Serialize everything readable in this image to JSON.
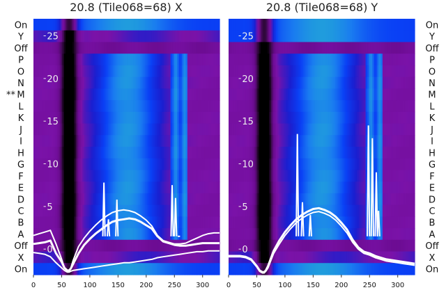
{
  "chart_data": [
    {
      "type": "heatmap",
      "title": "20.8 (Tile068=68) X",
      "xlabel": "",
      "ylabel": "",
      "x_ticks": [
        0,
        50,
        100,
        150,
        200,
        250,
        300
      ],
      "xlim": [
        0,
        330
      ],
      "row_labels_top_to_bottom": [
        "On",
        "Y",
        "Off",
        "P",
        "O",
        "N",
        "M",
        "L",
        "K",
        "J",
        "I",
        "H",
        "G",
        "F",
        "E",
        "D",
        "C",
        "B",
        "A",
        "Off",
        "X",
        "On"
      ],
      "row_labels_side": "left",
      "marked_row": "M",
      "marker_text": "** ",
      "overlay_y_ticks": [
        25,
        20,
        15,
        10,
        5,
        0
      ],
      "overlay_ylim": [
        -3,
        27
      ],
      "colormap": [
        "#000000",
        "#3b0a4a",
        "#6a0b8f",
        "#7a12a8",
        "#1a1fd0",
        "#0a40f5",
        "#1a7cf0",
        "#22a8d6",
        "#20b8a0"
      ],
      "rows": [
        {
          "label": "On",
          "profile": "on_strong"
        },
        {
          "label": "Y",
          "profile": "on_weak"
        },
        {
          "label": "Off",
          "profile": "off"
        },
        {
          "label": "P",
          "profile": "pulse"
        },
        {
          "label": "O",
          "profile": "pulse"
        },
        {
          "label": "N",
          "profile": "pulse"
        },
        {
          "label": "M",
          "profile": "pulse"
        },
        {
          "label": "L",
          "profile": "pulse"
        },
        {
          "label": "K",
          "profile": "pulse"
        },
        {
          "label": "J",
          "profile": "pulse"
        },
        {
          "label": "I",
          "profile": "pulse"
        },
        {
          "label": "H",
          "profile": "pulse"
        },
        {
          "label": "G",
          "profile": "pulse"
        },
        {
          "label": "F",
          "profile": "pulse"
        },
        {
          "label": "E",
          "profile": "pulse"
        },
        {
          "label": "D",
          "profile": "pulse"
        },
        {
          "label": "C",
          "profile": "pulse"
        },
        {
          "label": "B",
          "profile": "pulse"
        },
        {
          "label": "A",
          "profile": "pulse"
        },
        {
          "label": "Off",
          "profile": "off"
        },
        {
          "label": "X",
          "profile": "on_weak"
        },
        {
          "label": "On",
          "profile": "on_strong"
        }
      ],
      "line_series": [
        {
          "x": [
            0,
            10,
            20,
            30,
            40,
            50,
            55,
            60,
            63,
            66,
            70,
            80,
            90,
            100,
            110,
            120,
            130,
            140,
            150,
            160,
            170,
            180,
            190,
            200,
            210,
            220,
            230,
            240,
            250,
            260,
            270,
            280,
            290,
            300,
            310,
            320,
            330
          ],
          "y": [
            0.6,
            0.7,
            0.8,
            1.0,
            -0.5,
            -1.5,
            -2.2,
            -2.5,
            -2.5,
            -2.3,
            -1.8,
            -0.5,
            0.5,
            1.2,
            1.8,
            2.3,
            2.8,
            3.2,
            3.4,
            3.5,
            3.6,
            3.5,
            3.2,
            2.8,
            2.4,
            1.5,
            0.9,
            0.7,
            0.5,
            0.4,
            0.4,
            0.5,
            0.6,
            0.7,
            0.7,
            0.7,
            0.7
          ]
        },
        {
          "x": [
            0,
            10,
            20,
            30,
            40,
            50,
            55,
            60,
            63,
            66,
            70,
            80,
            90,
            100,
            110,
            120,
            130,
            140,
            150,
            160,
            170,
            180,
            190,
            200,
            210,
            220,
            230,
            240,
            250,
            260,
            270,
            280,
            290,
            300,
            310,
            320,
            330
          ],
          "y": [
            1.6,
            1.8,
            2.0,
            2.2,
            0.6,
            -1.2,
            -2.2,
            -2.6,
            -2.6,
            -2.3,
            -1.4,
            0.3,
            1.3,
            2.1,
            2.8,
            3.4,
            3.9,
            4.3,
            4.5,
            4.6,
            4.5,
            4.3,
            3.9,
            3.4,
            2.7,
            1.6,
            1.0,
            0.8,
            0.6,
            0.6,
            0.7,
            1.0,
            1.3,
            1.6,
            1.8,
            1.9,
            1.9
          ]
        },
        {
          "x": [
            0,
            10,
            20,
            30,
            40,
            50,
            55,
            60,
            63,
            66,
            70,
            80,
            90,
            100,
            110,
            120,
            130,
            140,
            150,
            160,
            170,
            180,
            190,
            200,
            210,
            220,
            230,
            240,
            250,
            260,
            270,
            280,
            290,
            300,
            310,
            320,
            330
          ],
          "y": [
            -0.4,
            -0.5,
            -0.6,
            -0.9,
            -1.6,
            -2.2,
            -2.5,
            -2.7,
            -2.7,
            -2.6,
            -2.5,
            -2.4,
            -2.3,
            -2.2,
            -2.1,
            -2.0,
            -1.9,
            -1.8,
            -1.7,
            -1.6,
            -1.6,
            -1.5,
            -1.4,
            -1.3,
            -1.2,
            -1.0,
            -0.9,
            -0.8,
            -0.7,
            -0.6,
            -0.5,
            -0.4,
            -0.3,
            -0.3,
            -0.2,
            -0.2,
            -0.2
          ]
        }
      ],
      "spikes": [
        {
          "x": 125,
          "y": 7.8
        },
        {
          "x": 133,
          "y": 3.5
        },
        {
          "x": 148,
          "y": 5.8
        },
        {
          "x": 246,
          "y": 7.5
        },
        {
          "x": 252,
          "y": 6.0
        },
        {
          "x": 258,
          "y": 1.5
        }
      ]
    },
    {
      "type": "heatmap",
      "title": "20.8 (Tile068=68) Y",
      "xlabel": "",
      "ylabel": "",
      "x_ticks": [
        0,
        50,
        100,
        150,
        200,
        250,
        300
      ],
      "xlim": [
        0,
        330
      ],
      "row_labels_top_to_bottom": [
        "On",
        "Y",
        "Off",
        "P",
        "O",
        "N",
        "M",
        "L",
        "K",
        "J",
        "I",
        "H",
        "G",
        "F",
        "E",
        "D",
        "C",
        "B",
        "A",
        "Off",
        "X",
        "On"
      ],
      "row_labels_side": "right",
      "overlay_y_ticks": [
        25,
        20,
        15,
        10,
        5,
        0
      ],
      "overlay_ylim": [
        -3,
        27
      ],
      "colormap": [
        "#000000",
        "#3b0a4a",
        "#6a0b8f",
        "#7a12a8",
        "#1a1fd0",
        "#0a40f5",
        "#1a7cf0",
        "#22a8d6",
        "#20b8a0"
      ],
      "rows": [
        {
          "label": "On",
          "profile": "on_strong"
        },
        {
          "label": "Y",
          "profile": "on_strong"
        },
        {
          "label": "Off",
          "profile": "off"
        },
        {
          "label": "P",
          "profile": "pulse"
        },
        {
          "label": "O",
          "profile": "pulse"
        },
        {
          "label": "N",
          "profile": "pulse"
        },
        {
          "label": "M",
          "profile": "pulse"
        },
        {
          "label": "L",
          "profile": "pulse"
        },
        {
          "label": "K",
          "profile": "pulse"
        },
        {
          "label": "J",
          "profile": "pulse"
        },
        {
          "label": "I",
          "profile": "pulse"
        },
        {
          "label": "H",
          "profile": "pulse"
        },
        {
          "label": "G",
          "profile": "pulse"
        },
        {
          "label": "F",
          "profile": "pulse"
        },
        {
          "label": "E",
          "profile": "pulse"
        },
        {
          "label": "D",
          "profile": "pulse"
        },
        {
          "label": "C",
          "profile": "pulse"
        },
        {
          "label": "B",
          "profile": "pulse"
        },
        {
          "label": "A",
          "profile": "pulse"
        },
        {
          "label": "Off",
          "profile": "off"
        },
        {
          "label": "X",
          "profile": "on_weak"
        },
        {
          "label": "On",
          "profile": "on_strong"
        }
      ],
      "line_series": [
        {
          "x": [
            0,
            10,
            20,
            30,
            40,
            50,
            55,
            60,
            63,
            66,
            70,
            80,
            90,
            100,
            110,
            120,
            130,
            140,
            150,
            160,
            170,
            180,
            190,
            200,
            210,
            220,
            230,
            240,
            250,
            260,
            270,
            280,
            290,
            300,
            310,
            320,
            330
          ],
          "y": [
            -0.8,
            -0.8,
            -0.8,
            -0.9,
            -1.2,
            -2.0,
            -2.5,
            -2.7,
            -2.7,
            -2.5,
            -2.0,
            -0.2,
            1.0,
            2.0,
            2.8,
            3.5,
            4.0,
            4.4,
            4.7,
            4.8,
            4.6,
            4.3,
            3.8,
            3.1,
            2.3,
            1.1,
            0.2,
            -0.3,
            -0.5,
            -0.8,
            -1.0,
            -1.2,
            -1.3,
            -1.4,
            -1.5,
            -1.6,
            -1.7
          ]
        },
        {
          "x": [
            0,
            10,
            20,
            30,
            40,
            50,
            55,
            60,
            63,
            66,
            70,
            80,
            90,
            100,
            110,
            120,
            130,
            140,
            150,
            160,
            170,
            180,
            190,
            200,
            210,
            220,
            230,
            240,
            250,
            260,
            270,
            280,
            290,
            300,
            310,
            320,
            330
          ],
          "y": [
            -0.9,
            -0.9,
            -0.9,
            -1.0,
            -1.3,
            -2.1,
            -2.6,
            -2.8,
            -2.8,
            -2.6,
            -2.2,
            -0.5,
            0.6,
            1.6,
            2.4,
            3.1,
            3.6,
            4.0,
            4.3,
            4.4,
            4.2,
            3.9,
            3.4,
            2.7,
            1.9,
            0.8,
            0.0,
            -0.5,
            -0.7,
            -1.0,
            -1.2,
            -1.4,
            -1.5,
            -1.6,
            -1.7,
            -1.8,
            -1.9
          ]
        }
      ],
      "spikes": [
        {
          "x": 122,
          "y": 13.5
        },
        {
          "x": 131,
          "y": 5.5
        },
        {
          "x": 145,
          "y": 4.0
        },
        {
          "x": 248,
          "y": 14.5
        },
        {
          "x": 255,
          "y": 13.0
        },
        {
          "x": 262,
          "y": 9.0
        },
        {
          "x": 266,
          "y": 4.5
        }
      ]
    }
  ]
}
